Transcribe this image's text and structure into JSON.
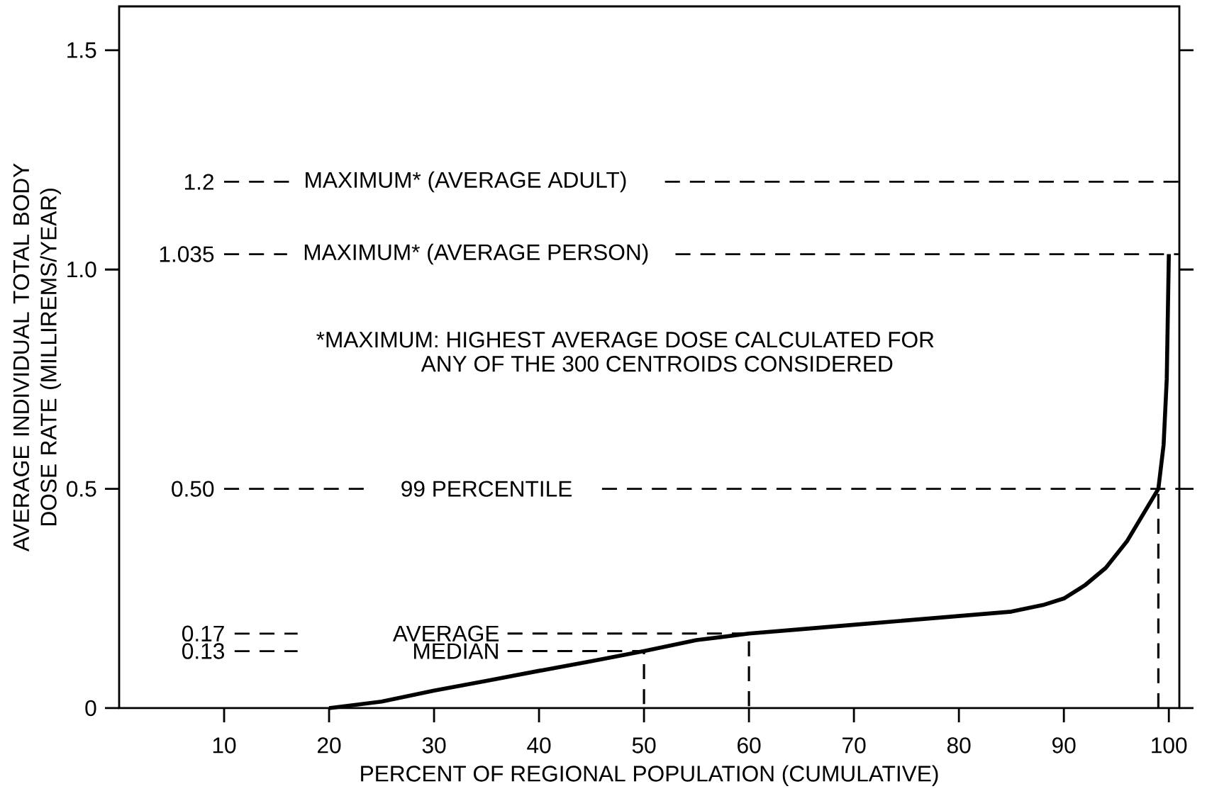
{
  "chart_data": {
    "type": "line",
    "xlabel": "PERCENT OF REGIONAL POPULATION (CUMULATIVE)",
    "ylabel": "AVERAGE INDIVIDUAL TOTAL BODY DOSE RATE (MILLIREMS/YEAR)",
    "xlim": [
      0,
      101
    ],
    "ylim": [
      0,
      1.6
    ],
    "xticks": [
      10,
      20,
      30,
      40,
      50,
      60,
      70,
      80,
      90,
      100
    ],
    "yticks": [
      {
        "value": 0,
        "label": "0"
      },
      {
        "value": 0.5,
        "label": "0.5"
      },
      {
        "value": 1.0,
        "label": "1.0"
      },
      {
        "value": 1.5,
        "label": "1.5"
      }
    ],
    "marker": "none",
    "series": [
      {
        "color": "#000000",
        "line_style": "solid",
        "x": [
          20,
          25,
          30,
          35,
          40,
          45,
          50,
          55,
          60,
          65,
          70,
          75,
          80,
          85,
          88,
          90,
          92,
          94,
          96,
          97,
          98,
          99,
          99.5,
          99.8,
          100
        ],
        "values": [
          0,
          0.015,
          0.04,
          0.062,
          0.085,
          0.107,
          0.13,
          0.155,
          0.17,
          0.18,
          0.19,
          0.2,
          0.21,
          0.22,
          0.235,
          0.25,
          0.28,
          0.32,
          0.38,
          0.42,
          0.46,
          0.5,
          0.6,
          0.75,
          1.035
        ]
      },
      {
        "name": "MEDIAN",
        "color": "#000000",
        "line_style": "dashed",
        "x": [
          37,
          50,
          50
        ],
        "values": [
          0.13,
          0.13,
          0
        ]
      },
      {
        "name": "AVERAGE",
        "color": "#000000",
        "line_style": "dashed",
        "x": [
          37,
          60,
          60
        ],
        "values": [
          0.17,
          0.17,
          0
        ]
      },
      {
        "color": "#000000",
        "line_style": "dashed",
        "x": [
          99,
          99
        ],
        "values": [
          0,
          0.5
        ]
      }
    ],
    "ref_lines": [
      {
        "axis": "y",
        "value": 1.2,
        "label": "MAXIMUM* (AVERAGE ADULT)",
        "line_style": "dashed"
      },
      {
        "axis": "y",
        "value": 1.035,
        "label": "MAXIMUM* (AVERAGE PERSON)",
        "line_style": "dashed"
      },
      {
        "axis": "y",
        "value": 0.5,
        "label": "99 PERCENTILE",
        "line_style": "dashed"
      },
      {
        "axis": "y",
        "value": 0.17,
        "label": "0.17",
        "line_style": "dashed"
      },
      {
        "axis": "y",
        "value": 0.13,
        "label": "0.13",
        "line_style": "dashed"
      }
    ],
    "annotations": [
      "1.2",
      "1.035",
      "0.50",
      "*MAXIMUM: HIGHEST AVERAGE DOSE CALCULATED FOR",
      "ANY OF THE 300 CENTROIDS CONSIDERED"
    ]
  }
}
